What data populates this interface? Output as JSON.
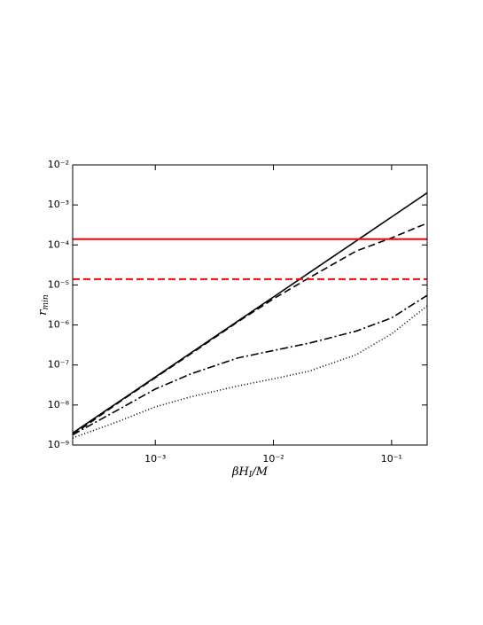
{
  "chart_data": {
    "type": "line",
    "xlabel": [
      "βH",
      "I",
      "/M"
    ],
    "ylabel": [
      "r",
      "min"
    ],
    "x": [
      0.0002,
      0.0005,
      0.001,
      0.002,
      0.005,
      0.01,
      0.02,
      0.05,
      0.1,
      0.2
    ],
    "series": [
      {
        "color": "#000000",
        "linestyle": "solid",
        "values": [
          2e-09,
          1.25e-08,
          5e-08,
          2e-07,
          1.25e-06,
          5e-06,
          2e-05,
          0.000125,
          0.0005,
          0.002
        ]
      },
      {
        "color": "#000000",
        "linestyle": "dashed",
        "values": [
          1.8e-09,
          1.2e-08,
          4.8e-08,
          1.9e-07,
          1.2e-06,
          4.5e-06,
          1.5e-05,
          7e-05,
          0.00015,
          0.00035
        ]
      },
      {
        "color": "#000000",
        "linestyle": "dashdot",
        "values": [
          1.8e-09,
          8e-09,
          2.5e-08,
          6e-08,
          1.5e-07,
          2.3e-07,
          3.5e-07,
          7e-07,
          1.5e-06,
          5.5e-06
        ]
      },
      {
        "color": "#000000",
        "linestyle": "dotted",
        "values": [
          1.5e-09,
          4e-09,
          9e-09,
          1.6e-08,
          3e-08,
          4.5e-08,
          7e-08,
          1.8e-07,
          6e-07,
          3e-06
        ]
      },
      {
        "color": "#ff0000",
        "linestyle": "solid",
        "values": [
          0.00014,
          0.00014,
          0.00014,
          0.00014,
          0.00014,
          0.00014,
          0.00014,
          0.00014,
          0.00014,
          0.00014
        ]
      },
      {
        "color": "#ff0000",
        "linestyle": "dashed",
        "values": [
          1.4e-05,
          1.4e-05,
          1.4e-05,
          1.4e-05,
          1.4e-05,
          1.4e-05,
          1.4e-05,
          1.4e-05,
          1.4e-05,
          1.4e-05
        ]
      }
    ],
    "xscale": "log",
    "yscale": "log",
    "xlim": [
      0.0002,
      0.2
    ],
    "ylim": [
      1e-09,
      0.01
    ],
    "xticks": [
      {
        "value": 0.001,
        "label": "10⁻³"
      },
      {
        "value": 0.01,
        "label": "10⁻²"
      },
      {
        "value": 0.1,
        "label": "10⁻¹"
      }
    ],
    "yticks": [
      {
        "value": 1e-09,
        "label": "10⁻⁹"
      },
      {
        "value": 1e-08,
        "label": "10⁻⁸"
      },
      {
        "value": 1e-07,
        "label": "10⁻⁷"
      },
      {
        "value": 1e-06,
        "label": "10⁻⁶"
      },
      {
        "value": 1e-05,
        "label": "10⁻⁵"
      },
      {
        "value": 0.0001,
        "label": "10⁻⁴"
      },
      {
        "value": 0.001,
        "label": "10⁻³"
      },
      {
        "value": 0.01,
        "label": "10⁻²"
      }
    ],
    "grid": false
  }
}
